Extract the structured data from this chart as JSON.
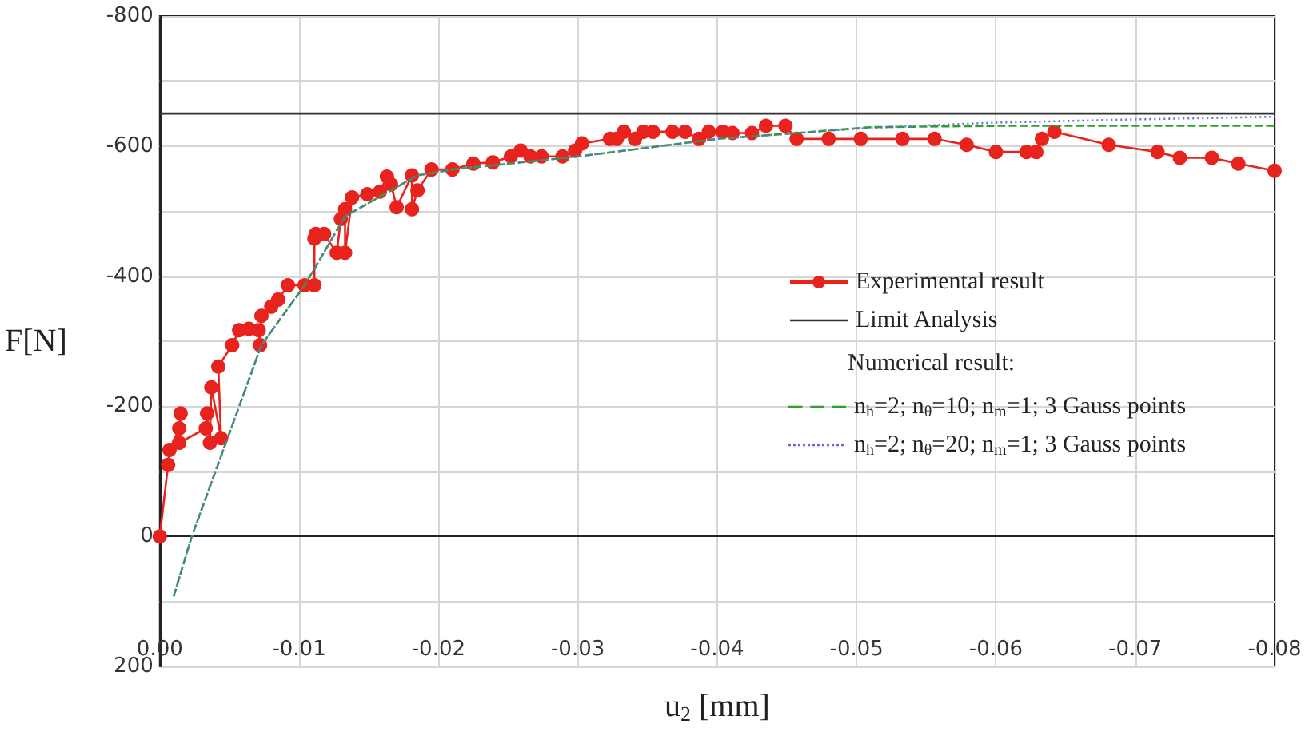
{
  "chart_data": {
    "type": "line",
    "xlabel": "u$_{2}$ [mm]",
    "ylabel": "F[N]",
    "legend_title": "Numerical result:",
    "xlim": [
      0,
      -0.08
    ],
    "ylim": [
      200,
      -800
    ],
    "xticks": [
      {
        "value": 0,
        "label": "0.00"
      },
      -0.01,
      -0.02,
      -0.03,
      -0.04,
      -0.05,
      -0.06,
      -0.07,
      -0.08
    ],
    "yticks": [
      -800,
      {
        "value": -700,
        "label": null
      },
      -600,
      {
        "value": -500,
        "label": null
      },
      -400,
      {
        "value": -300,
        "label": null
      },
      -200,
      {
        "value": -100,
        "label": null
      },
      0,
      {
        "value": 100,
        "label": null
      },
      200
    ],
    "grid": true,
    "legend": "right",
    "series": [
      {
        "name": "Experimental result",
        "color": "#e8231d",
        "marker": "circle",
        "line_style": "solid",
        "x": [
          0,
          -0.0006,
          -0.0007,
          -0.0014,
          -0.0015,
          -0.0014,
          -0.0033,
          -0.0034,
          -0.0036,
          -0.0037,
          -0.0044,
          -0.0042,
          -0.0052,
          -0.0057,
          -0.0064,
          -0.0071,
          -0.0072,
          -0.0073,
          -0.008,
          -0.0085,
          -0.0092,
          -0.0104,
          -0.0111,
          -0.0111,
          -0.0112,
          -0.0118,
          -0.0127,
          -0.013,
          -0.0133,
          -0.0133,
          -0.0138,
          -0.0149,
          -0.0158,
          -0.0163,
          -0.0166,
          -0.017,
          -0.0181,
          -0.0181,
          -0.0185,
          -0.0195,
          -0.021,
          -0.0225,
          -0.0239,
          -0.0252,
          -0.0259,
          -0.0266,
          -0.0274,
          -0.0289,
          -0.0298,
          -0.0303,
          -0.0323,
          -0.0328,
          -0.0333,
          -0.0341,
          -0.0347,
          -0.0354,
          -0.0368,
          -0.0377,
          -0.0387,
          -0.0394,
          -0.0404,
          -0.0411,
          -0.0425,
          -0.0435,
          -0.0449,
          -0.0457,
          -0.048,
          -0.0503,
          -0.0533,
          -0.0556,
          -0.0579,
          -0.06,
          -0.0622,
          -0.0629,
          -0.0633,
          -0.0642,
          -0.0681,
          -0.0716,
          -0.0732,
          -0.0755,
          -0.0774,
          -0.08
        ],
        "values": [
          0,
          -110,
          -133,
          -166,
          -189,
          -144,
          -166,
          -189,
          -144,
          -229,
          -151,
          -261,
          -294,
          -317,
          -319,
          -317,
          -294,
          -339,
          -353,
          -364,
          -386,
          -386,
          -386,
          -458,
          -465,
          -465,
          -436,
          -488,
          -503,
          -436,
          -521,
          -526,
          -530,
          -553,
          -541,
          -506,
          -555,
          -503,
          -532,
          -564,
          -564,
          -573,
          -575,
          -584,
          -593,
          -584,
          -584,
          -584,
          -593,
          -604,
          -611,
          -611,
          -622,
          -611,
          -622,
          -622,
          -622,
          -622,
          -611,
          -622,
          -622,
          -620,
          -620,
          -631,
          -631,
          -611,
          -611,
          -611,
          -611,
          -611,
          -602,
          -591,
          -591,
          -591,
          -611,
          -622,
          -602,
          -591,
          -582,
          -582,
          -573,
          -562
        ]
      },
      {
        "name": "Limit Analysis",
        "color": "#333333",
        "marker": "none",
        "line_style": "solid",
        "x": [
          0,
          -0.08
        ],
        "values": [
          -650,
          -650
        ]
      },
      {
        "name": "n$_{h}$=2; n$_{θ}$=10; n$_{m}$=1; 3 Gauss points",
        "color": "#2ca02c",
        "marker": "none",
        "line_style": "dashed",
        "x": [
          -0.001,
          -0.0023,
          -0.0073,
          -0.0104,
          -0.0133,
          -0.0185,
          -0.021,
          -0.03,
          -0.04,
          -0.0457,
          -0.051,
          -0.06,
          -0.08
        ],
        "values": [
          92,
          0,
          -294,
          -386,
          -492,
          -555,
          -564,
          -584,
          -611,
          -620,
          -629,
          -631,
          -631
        ]
      },
      {
        "name": "n$_{h}$=2; n$_{θ}$=20; n$_{m}$=1; 3 Gauss points",
        "color": "#6a6adf",
        "marker": "none",
        "line_style": "dotted",
        "x": [
          -0.001,
          -0.0023,
          -0.0073,
          -0.0104,
          -0.0133,
          -0.0185,
          -0.021,
          -0.03,
          -0.04,
          -0.0457,
          -0.051,
          -0.06,
          -0.07,
          -0.08
        ],
        "values": [
          92,
          0,
          -294,
          -386,
          -492,
          -555,
          -564,
          -584,
          -611,
          -620,
          -628,
          -636,
          -641,
          -645
        ]
      }
    ]
  }
}
